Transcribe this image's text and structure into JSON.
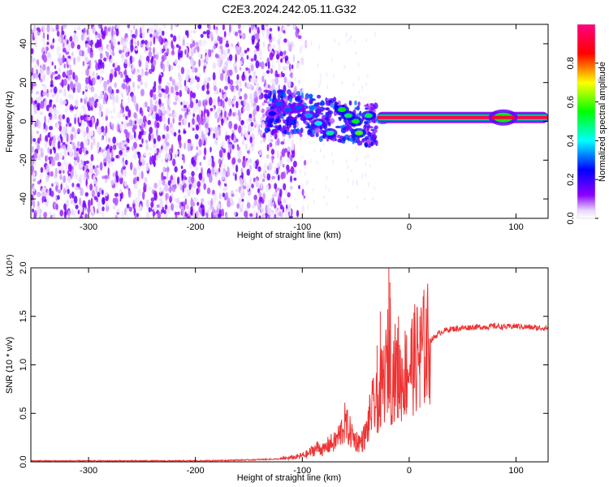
{
  "chart_data": [
    {
      "type": "heatmap",
      "title": "C2E3.2024.242.05.11.G32",
      "xlabel": "Height of straight line (km)",
      "ylabel": "Frequency (Hz)",
      "xlim": [
        -354,
        130
      ],
      "ylim": [
        -50,
        50
      ],
      "xticks": [
        -300,
        -200,
        -100,
        0,
        100
      ],
      "yticks": [
        -40,
        -20,
        0,
        20,
        40
      ],
      "colorbar": {
        "label": "Normalized spectral amplitude",
        "ticks": [
          0.0,
          0.2,
          0.4,
          0.6,
          0.8
        ],
        "tick_labels": [
          "0.0",
          "0.2",
          "0.4",
          "0.6",
          "0.8"
        ],
        "range": [
          0,
          1
        ],
        "colormap": [
          "#ffffff",
          "#8b00ff",
          "#0000ff",
          "#00ffff",
          "#00ff00",
          "#ffff00",
          "#ff0000",
          "#ff0080"
        ]
      },
      "features": {
        "noise_region_x": [
          -354,
          -115
        ],
        "noise_fade_x": [
          -115,
          -95
        ],
        "scattered_signal_x": [
          -135,
          -30
        ],
        "signal_line": {
          "x_range": [
            -30,
            130
          ],
          "freq": 2,
          "amplitude": 0.95
        },
        "signal_bulge": {
          "x_center": 88,
          "amplitude": 0.55
        },
        "signal_patches": [
          {
            "x": -63,
            "y": 6,
            "a": 0.55
          },
          {
            "x": -57,
            "y": 3,
            "a": 0.5
          },
          {
            "x": -50,
            "y": 0,
            "a": 0.55
          },
          {
            "x": -47,
            "y": -6,
            "a": 0.6
          },
          {
            "x": -74,
            "y": -6,
            "a": 0.45
          },
          {
            "x": -85,
            "y": -1,
            "a": 0.4
          },
          {
            "x": -94,
            "y": 3,
            "a": 0.35
          },
          {
            "x": -104,
            "y": 7,
            "a": 0.3
          },
          {
            "x": -113,
            "y": 6,
            "a": 0.3
          },
          {
            "x": -122,
            "y": 9,
            "a": 0.3
          },
          {
            "x": -128,
            "y": 4,
            "a": 0.25
          },
          {
            "x": -38,
            "y": 3,
            "a": 0.5
          },
          {
            "x": -25,
            "y": 1,
            "a": 0.75
          }
        ]
      }
    },
    {
      "type": "line",
      "xlabel": "Height of straight line (km)",
      "ylabel": "SNR (10 * v/v)",
      "y_multiplier": "(x10⁴)",
      "xlim": [
        -354,
        130
      ],
      "ylim": [
        0,
        2.0
      ],
      "xticks": [
        -300,
        -200,
        -100,
        0,
        100
      ],
      "yticks": [
        0.0,
        0.5,
        1.0,
        1.5,
        2.0
      ],
      "ytick_labels": [
        "0.0",
        "0.5",
        "1.0",
        "1.5",
        "2.0"
      ],
      "series": [
        {
          "color": "#ee3333",
          "x": [
            -354,
            -300,
            -200,
            -150,
            -120,
            -105,
            -95,
            -90,
            -85,
            -80,
            -75,
            -70,
            -65,
            -60,
            -55,
            -50,
            -45,
            -40,
            -35,
            -30,
            -26,
            -22,
            -19,
            -18,
            -17,
            -15,
            -12,
            -8,
            -5,
            -2,
            0,
            5,
            10,
            15,
            20,
            25,
            30,
            35,
            40,
            50,
            60,
            70,
            80,
            90,
            100,
            110,
            120,
            130
          ],
          "y": [
            0.01,
            0.01,
            0.01,
            0.02,
            0.03,
            0.05,
            0.08,
            0.12,
            0.15,
            0.12,
            0.18,
            0.2,
            0.28,
            0.4,
            0.3,
            0.22,
            0.2,
            0.3,
            0.55,
            0.6,
            0.75,
            0.9,
            1.1,
            1.4,
            0.8,
            0.9,
            0.95,
            0.85,
            0.9,
            0.95,
            1.0,
            1.05,
            1.12,
            1.18,
            1.25,
            1.3,
            1.34,
            1.36,
            1.37,
            1.38,
            1.39,
            1.39,
            1.4,
            1.39,
            1.4,
            1.39,
            1.38,
            1.38
          ]
        }
      ],
      "peaks": [
        {
          "x": -30,
          "y": 1.2
        },
        {
          "x": -27,
          "y": 1.55
        },
        {
          "x": -19,
          "y": 2.05
        },
        {
          "x": -18,
          "y": 1.85
        },
        {
          "x": -10,
          "y": 1.5
        },
        {
          "x": 10,
          "y": 1.5
        }
      ]
    }
  ]
}
